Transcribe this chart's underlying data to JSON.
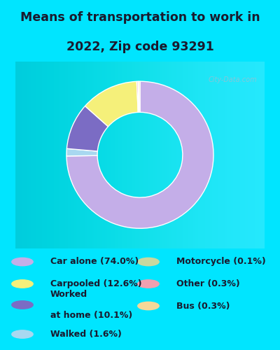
{
  "title_line1": "Means of transportation to work in",
  "title_line2": "2022, Zip code 93291",
  "slices": [
    {
      "label": "Car alone (74.0%)",
      "value": 74.0,
      "color": "#c4aee8"
    },
    {
      "label": "Walked (1.6%)",
      "value": 1.6,
      "color": "#a8d8f0"
    },
    {
      "label": "Worked\nat home (10.1%)",
      "value": 10.1,
      "color": "#7b6cc4"
    },
    {
      "label": "Carpooled (12.6%)",
      "value": 12.6,
      "color": "#f5f07a"
    },
    {
      "label": "Other (0.3%)",
      "value": 0.3,
      "color": "#f0a0b0"
    },
    {
      "label": "Motorcycle (0.1%)",
      "value": 0.1,
      "color": "#c8d8a0"
    },
    {
      "label": "Bus (0.3%)",
      "value": 0.3,
      "color": "#f5d898"
    }
  ],
  "legend_left": [
    {
      "label": "Car alone (74.0%)",
      "color": "#c4aee8"
    },
    {
      "label": "Carpooled (12.6%)",
      "color": "#f5f07a"
    },
    {
      "label": "Worked",
      "label2": "at home (10.1%)",
      "color": "#7b6cc4"
    },
    {
      "label": "Walked (1.6%)",
      "color": "#a8d8f0"
    }
  ],
  "legend_right": [
    {
      "label": "Motorcycle (0.1%)",
      "color": "#c8d8a0"
    },
    {
      "label": "Other (0.3%)",
      "color": "#f0a0b0"
    },
    {
      "label": "Bus (0.3%)",
      "color": "#f5d898"
    }
  ],
  "bg_color_outer": "#00e5ff",
  "bg_color_chart": "#ddeedd",
  "figsize": [
    4.0,
    5.0
  ],
  "dpi": 100
}
